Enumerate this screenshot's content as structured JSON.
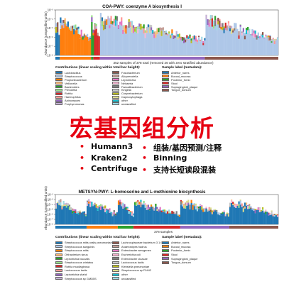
{
  "chart_data": [
    {
      "type": "bar",
      "title": "COA-PWY: coenzyme A biosynthesis I",
      "ylabel": "Abundance (unspecified units)",
      "y_ticks": [
        "10⁻³",
        "10⁻⁴",
        "10⁻⁵",
        "10⁻⁶",
        "10⁻⁷",
        "10⁻⁸"
      ],
      "xlabel": "352 samples of 378 total (removed 26 with zero stratified abundance)",
      "legend_title": "Contributions (linear scaling within total bar height):",
      "contributors": [
        {
          "name": "Lactobacillus",
          "color": "#1f77b4"
        },
        {
          "name": "Streptococcus",
          "color": "#aec7e8"
        },
        {
          "name": "Propionibacterium",
          "color": "#ff7f0e"
        },
        {
          "name": "Veillonella",
          "color": "#ffbb78"
        },
        {
          "name": "Bacteroides",
          "color": "#2ca02c"
        },
        {
          "name": "Prevotella",
          "color": "#98df8a"
        },
        {
          "name": "Rothia",
          "color": "#d62728"
        },
        {
          "name": "Haemophilus",
          "color": "#ff9896"
        },
        {
          "name": "Actinomyces",
          "color": "#9467bd"
        },
        {
          "name": "Porphyromonas",
          "color": "#c5b0d5"
        },
        {
          "name": "Fusobacterium",
          "color": "#8c564b"
        },
        {
          "name": "Alloprevotella",
          "color": "#c49c94"
        },
        {
          "name": "Leptotrichia",
          "color": "#e377c2"
        },
        {
          "name": "Neisseria",
          "color": "#f7b6d2"
        },
        {
          "name": "Faecalibacterium",
          "color": "#7f7f7f"
        },
        {
          "name": "Kingella",
          "color": "#c7c7c7"
        },
        {
          "name": "Corynebacterium",
          "color": "#bcbd22"
        },
        {
          "name": "Capnocytophaga",
          "color": "#dbdb8d"
        },
        {
          "name": "other",
          "color": "#17becf"
        },
        {
          "name": "unclassified",
          "color": "#9edae5"
        }
      ],
      "sample_legend_title": "Sample label (metadata):",
      "sample_labels": [
        {
          "name": "Anterior_nares",
          "color": "#1f77b4"
        },
        {
          "name": "Buccal_mucosa",
          "color": "#ff7f0e"
        },
        {
          "name": "Posterior_fornix",
          "color": "#2ca02c"
        },
        {
          "name": "Stool",
          "color": "#d62728"
        },
        {
          "name": "Supragingival_plaque",
          "color": "#9467bd"
        },
        {
          "name": "Tongue_dorsum",
          "color": "#8c564b"
        }
      ],
      "sample_groups": [
        0.02,
        0.14,
        0.01,
        0.03,
        0.47,
        0.33
      ]
    },
    {
      "type": "bar",
      "title": "METSYN-PWY: L-homoserine and L-methionine biosynthesis",
      "ylabel": "Abundance (unspecified units)",
      "y_ticks": [
        "10⁻²",
        "10⁻³",
        "10⁻⁴",
        "10⁻⁵",
        "10⁻⁶",
        "10⁻⁷",
        "10⁻⁸"
      ],
      "xlabel": "378 samples",
      "legend_title": "Contributions (linear scaling within total bar height):",
      "contributors": [
        {
          "name": "Streptococcus mitis oralis pneumoniae",
          "color": "#1f77b4"
        },
        {
          "name": "Streptococcus sanguinis",
          "color": "#aec7e8"
        },
        {
          "name": "Streptococcus mitis",
          "color": "#ff7f0e"
        },
        {
          "name": "Orthacterium sinus",
          "color": "#ffbb78"
        },
        {
          "name": "Leptotrichia buccalis",
          "color": "#2ca02c"
        },
        {
          "name": "Streptococcus cristatus",
          "color": "#98df8a"
        },
        {
          "name": "Rothia mucilaginosa",
          "color": "#d62728"
        },
        {
          "name": "Lactococcus lactis",
          "color": "#ff9896"
        },
        {
          "name": "Leptotrichia shahii",
          "color": "#9467bd"
        },
        {
          "name": "Streptococcus sp GMD5S",
          "color": "#c5b0d5"
        },
        {
          "name": "Lachnospiraceae bacterium 3 1 63FAA",
          "color": "#8c564b"
        },
        {
          "name": "Anaerostipes hadrus",
          "color": "#c49c94"
        },
        {
          "name": "Enterobacter aerogenes",
          "color": "#e377c2"
        },
        {
          "name": "Escherichia coli",
          "color": "#f7b6d2"
        },
        {
          "name": "Enterobacter cloacae",
          "color": "#7f7f7f"
        },
        {
          "name": "Lactococcus lactis",
          "color": "#c7c7c7"
        },
        {
          "name": "Klebsiella pneumoniae",
          "color": "#bcbd22"
        },
        {
          "name": "Streptococcus sp F0442",
          "color": "#dbdb8d"
        },
        {
          "name": "other",
          "color": "#17becf"
        },
        {
          "name": "unclassified",
          "color": "#9edae5"
        }
      ],
      "sample_legend_title": "Sample label (metadata):",
      "sample_labels": [
        {
          "name": "Anterior_nares",
          "color": "#1f77b4"
        },
        {
          "name": "Buccal_mucosa",
          "color": "#ff7f0e"
        },
        {
          "name": "Posterior_fornix",
          "color": "#2ca02c"
        },
        {
          "name": "Stool",
          "color": "#d62728"
        },
        {
          "name": "Supragingival_plaque",
          "color": "#9467bd"
        },
        {
          "name": "Tongue_dorsum",
          "color": "#8c564b"
        }
      ],
      "sample_groups": [
        0.14,
        0.14,
        0.07,
        0.21,
        0.22,
        0.22
      ]
    }
  ],
  "banner": {
    "title": "宏基因组分析",
    "bullets_left": [
      "Humann3",
      "Kraken2",
      "Centrifuge"
    ],
    "bullets_right": [
      "组装/基因预测/注释",
      "Binning",
      "支持长短读段混装"
    ],
    "accent_color": "#e60012"
  }
}
